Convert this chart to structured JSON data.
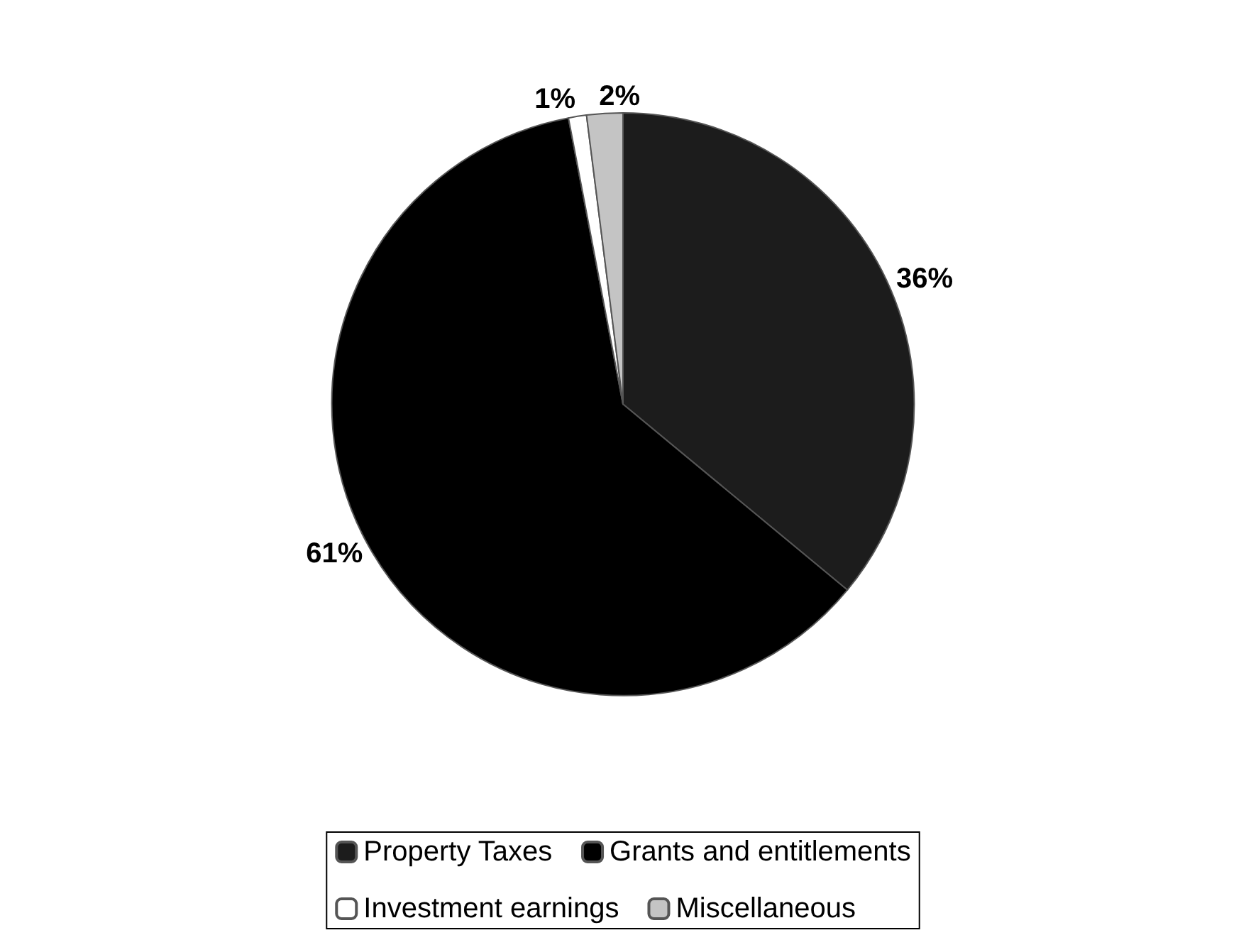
{
  "chart_data": {
    "type": "pie",
    "categories": [
      "Property Taxes",
      "Grants and entitlements",
      "Investment earnings",
      "Miscellaneous"
    ],
    "values": [
      36,
      61,
      1,
      2
    ],
    "colors": [
      "#1c1c1c",
      "#000000",
      "#ffffff",
      "#c4c4c4"
    ],
    "value_labels": [
      "36%",
      "61%",
      "1%",
      "2%"
    ],
    "legend": "bottom"
  }
}
